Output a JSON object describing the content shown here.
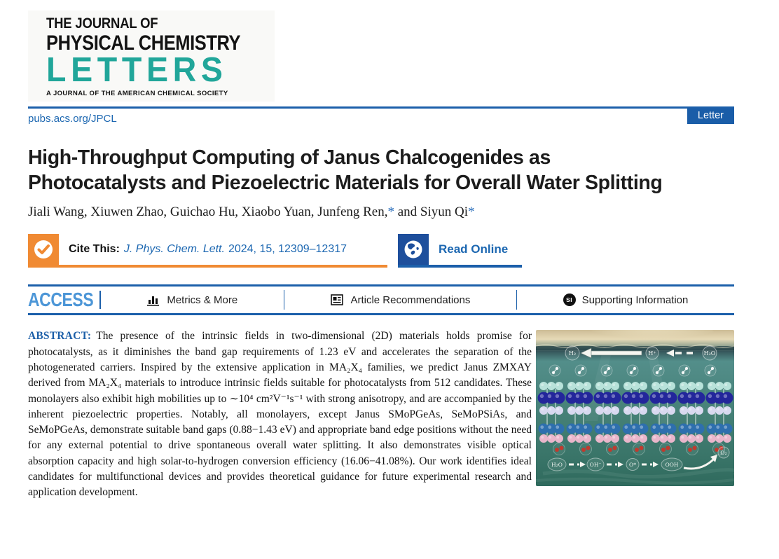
{
  "masthead": {
    "line1": "THE JOURNAL OF",
    "line2": "PHYSICAL CHEMISTRY",
    "line3": "LETTERS",
    "tagline": "A JOURNAL OF THE AMERICAN CHEMICAL SOCIETY"
  },
  "topbar": {
    "url": "pubs.acs.org/JPCL",
    "badge": "Letter"
  },
  "article": {
    "title": "High-Throughput Computing of Janus Chalcogenides as Photocatalysts and Piezoelectric Materials for Overall Water Splitting",
    "authors_part1": "Jiali Wang, Xiuwen Zhao, Guichao Hu, Xiaobo Yuan, Junfeng Ren,",
    "star": "*",
    "authors_part2": " and Siyun Qi",
    "cite": {
      "label": "Cite This:",
      "journal": "J. Phys. Chem. Lett.",
      "rest": "2024, 15, 12309–12317",
      "read_online": "Read Online"
    }
  },
  "access_bar": {
    "access": "ACCESS",
    "metrics": "Metrics & More",
    "recommendations": "Article Recommendations",
    "supporting": "Supporting Information",
    "si_badge": "SI"
  },
  "abstract": {
    "label": "ABSTRACT:",
    "text": "The presence of the intrinsic fields in two-dimensional (2D) materials holds promise for photocatalysts, as it diminishes the band gap requirements of 1.23 eV and accelerates the separation of the photogenerated carriers. Inspired by the extensive application in MA₂X₄ families, we predict Janus ZMXAY derived from MA₂X₄ materials to introduce intrinsic fields suitable for photocatalysts from 512 candidates. These monolayers also exhibit high mobilities up to ∼10⁴ cm²V⁻¹s⁻¹ with strong anisotropy, and are accompanied by the inherent piezoelectric properties. Notably, all monolayers, except Janus SMoPGeAs, SeMoPSiAs, and SeMoPGeAs, demonstrate suitable band gaps (0.88−1.43 eV) and appropriate band edge positions without the need for any external potential to drive spontaneous overall water splitting. It also demonstrates visible optical absorption capacity and high solar-to-hydrogen conversion efficiency (16.06−41.08%). Our work identifies ideal candidates for multifunctional devices and provides theoretical guidance for future experimental research and application development."
  },
  "graphic": {
    "top_reaction": [
      "H₂",
      "H⁺",
      "H₂O"
    ],
    "bottom_reaction": [
      "H₂O",
      "OH⁻",
      "O*",
      "OOH",
      "O₂"
    ],
    "atom_row_colors": [
      "#b8e2da",
      "#23269b",
      "#d8d9f0",
      "#2e6fae",
      "#e9b6cb"
    ],
    "o2_color": "#c03a2e"
  },
  "colors": {
    "accent_blue": "#1b5faa",
    "link_blue": "#1c67b1",
    "teal": "#21a69a",
    "orange": "#f08a33",
    "access_blue": "#4c96d7"
  }
}
